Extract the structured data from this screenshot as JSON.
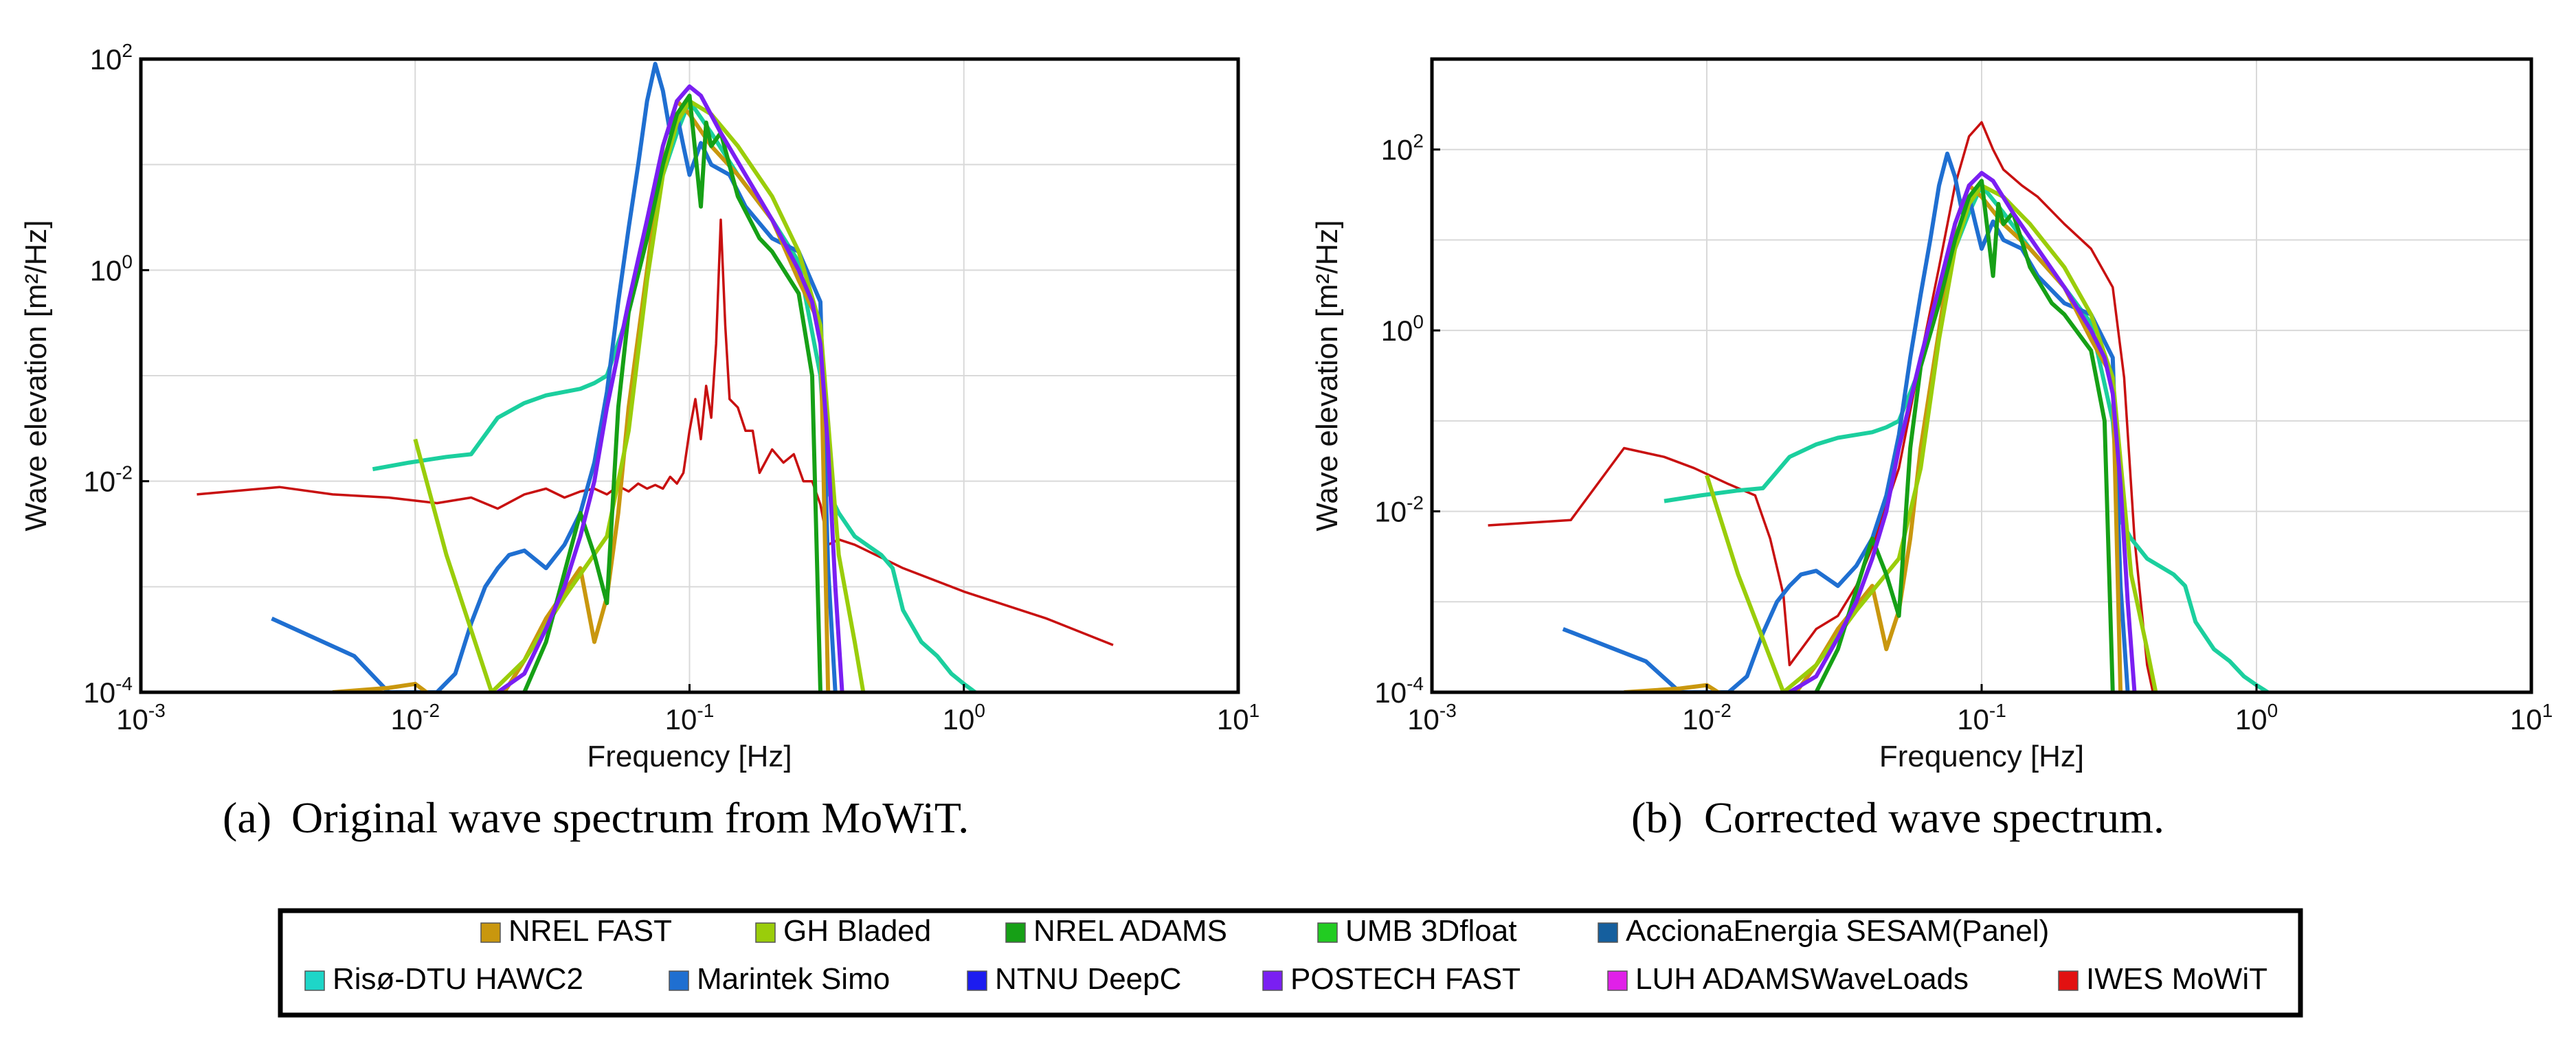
{
  "captions": {
    "a_label": "(a)",
    "a_text": "Original wave spectrum from MoWiT.",
    "b_label": "(b)",
    "b_text": "Corrected wave spectrum."
  },
  "legend": [
    {
      "label": "NREL FAST",
      "color": "#C9970E"
    },
    {
      "label": "GH Bladed",
      "color": "#9ACD0A"
    },
    {
      "label": "NREL ADAMS",
      "color": "#16A016"
    },
    {
      "label": "UMB 3Dfloat",
      "color": "#22CC22"
    },
    {
      "label": "AccionaEnergia SESAM(Panel)",
      "color": "#155F9E"
    },
    {
      "label": "Risø-DTU HAWC2",
      "color": "#1ED6C8"
    },
    {
      "label": "Marintek Simo",
      "color": "#1F6FD1"
    },
    {
      "label": "NTNU DeepC",
      "color": "#1C1CF0"
    },
    {
      "label": "POSTECH FAST",
      "color": "#7A1FF2"
    },
    {
      "label": "LUH ADAMSWaveLoads",
      "color": "#E020E8"
    },
    {
      "label": "IWES MoWiT",
      "color": "#E21111"
    }
  ],
  "chart_data": [
    {
      "type": "line",
      "id": "a",
      "title": "",
      "xlabel": "Frequency [Hz]",
      "ylabel": "Wave elevation [m²/Hz]",
      "xscale": "log",
      "yscale": "log",
      "xlim": [
        0.001,
        10
      ],
      "ylim": [
        0.0001,
        100
      ],
      "xticks": [
        {
          "base": "10",
          "exp": "-3"
        },
        {
          "base": "10",
          "exp": "-2"
        },
        {
          "base": "10",
          "exp": "-1"
        },
        {
          "base": "10",
          "exp": "0"
        },
        {
          "base": "10",
          "exp": "1"
        }
      ],
      "yticks": [
        {
          "base": "10",
          "exp": "-4"
        },
        {
          "base": "10",
          "exp": "-2"
        },
        {
          "base": "10",
          "exp": "0"
        },
        {
          "base": "10",
          "exp": "2"
        }
      ],
      "series": [
        {
          "name": "IWES MoWiT",
          "color": "#C81010",
          "x": [
            0.0016,
            0.0032,
            0.005,
            0.008,
            0.012,
            0.016,
            0.02,
            0.025,
            0.03,
            0.035,
            0.04,
            0.045,
            0.05,
            0.055,
            0.06,
            0.065,
            0.07,
            0.075,
            0.08,
            0.085,
            0.09,
            0.095,
            0.1,
            0.105,
            0.11,
            0.115,
            0.12,
            0.125,
            0.13,
            0.135,
            0.14,
            0.15,
            0.16,
            0.17,
            0.18,
            0.2,
            0.22,
            0.24,
            0.26,
            0.28,
            0.3,
            0.32,
            0.35,
            0.4,
            0.6,
            1.0,
            2.0,
            3.5
          ],
          "y": [
            0.0075,
            0.0088,
            0.0075,
            0.007,
            0.0062,
            0.007,
            0.0055,
            0.0075,
            0.0085,
            0.007,
            0.008,
            0.0085,
            0.0075,
            0.009,
            0.008,
            0.0095,
            0.0085,
            0.0092,
            0.0085,
            0.011,
            0.0095,
            0.012,
            0.03,
            0.06,
            0.025,
            0.08,
            0.04,
            0.2,
            3.0,
            0.3,
            0.06,
            0.05,
            0.03,
            0.03,
            0.012,
            0.02,
            0.015,
            0.018,
            0.01,
            0.01,
            0.006,
            0.0025,
            0.0028,
            0.0025,
            0.0015,
            0.0009,
            0.0005,
            0.00028
          ]
        },
        {
          "name": "Risø-DTU HAWC2",
          "color": "#1BCF9E",
          "x": [
            0.007,
            0.0095,
            0.013,
            0.016,
            0.02,
            0.025,
            0.03,
            0.04,
            0.045,
            0.05,
            0.06,
            0.07,
            0.08,
            0.09,
            0.1,
            0.12,
            0.15,
            0.2,
            0.25,
            0.3,
            0.32,
            0.35,
            0.4,
            0.5,
            0.55,
            0.6,
            0.7,
            0.8,
            0.9,
            1.0,
            1.1
          ],
          "y": [
            0.013,
            0.015,
            0.017,
            0.018,
            0.04,
            0.055,
            0.065,
            0.075,
            0.085,
            0.1,
            0.4,
            2.0,
            8,
            20,
            40,
            20,
            8,
            3,
            1.2,
            0.1,
            0.008,
            0.005,
            0.003,
            0.002,
            0.0015,
            0.0006,
            0.0003,
            0.00022,
            0.00015,
            0.00012,
            0.0001
          ]
        },
        {
          "name": "Marintek Simo",
          "color": "#1F6FD1",
          "x": [
            0.003,
            0.006,
            0.008,
            0.012,
            0.014,
            0.016,
            0.018,
            0.02,
            0.022,
            0.025,
            0.03,
            0.035,
            0.04,
            0.045,
            0.05,
            0.055,
            0.06,
            0.065,
            0.07,
            0.075,
            0.08,
            0.085,
            0.09,
            0.095,
            0.1,
            0.11,
            0.12,
            0.14,
            0.16,
            0.2,
            0.25,
            0.3,
            0.32,
            0.34
          ],
          "y": [
            0.0005,
            0.00022,
            0.0001,
            0.0001,
            0.00015,
            0.00045,
            0.001,
            0.0015,
            0.002,
            0.0022,
            0.0015,
            0.0025,
            0.005,
            0.015,
            0.07,
            0.5,
            2.5,
            10,
            40,
            90,
            50,
            20,
            30,
            15,
            8,
            16,
            10,
            8,
            4,
            2,
            1.5,
            0.5,
            0.0015,
            0.0001
          ]
        },
        {
          "name": "NREL FAST",
          "color": "#C9970E",
          "x": [
            0.005,
            0.008,
            0.01,
            0.011,
            0.02,
            0.025,
            0.03,
            0.04,
            0.045,
            0.05,
            0.055,
            0.06,
            0.07,
            0.08,
            0.09,
            0.1,
            0.12,
            0.15,
            0.2,
            0.25,
            0.3,
            0.32
          ],
          "y": [
            0.0001,
            0.00011,
            0.00012,
            0.0001,
            8e-05,
            0.0002,
            0.0005,
            0.0015,
            0.0003,
            0.0008,
            0.005,
            0.05,
            1.0,
            15,
            40,
            30,
            15,
            8,
            3,
            0.8,
            0.3,
            0.0001
          ]
        },
        {
          "name": "GH Bladed",
          "color": "#9ACD0A",
          "x": [
            0.01,
            0.013,
            0.019,
            0.025,
            0.035,
            0.05,
            0.06,
            0.07,
            0.08,
            0.09,
            0.1,
            0.12,
            0.15,
            0.2,
            0.25,
            0.3,
            0.35,
            0.4,
            0.43
          ],
          "y": [
            0.025,
            0.002,
            0.0001,
            0.0002,
            0.0008,
            0.003,
            0.03,
            0.8,
            8,
            25,
            40,
            30,
            15,
            5,
            1.5,
            0.3,
            0.002,
            0.0003,
            0.0001
          ]
        },
        {
          "name": "NREL ADAMS",
          "color": "#16A016",
          "x": [
            0.025,
            0.03,
            0.04,
            0.045,
            0.05,
            0.055,
            0.06,
            0.07,
            0.08,
            0.09,
            0.1,
            0.11,
            0.115,
            0.12,
            0.13,
            0.15,
            0.18,
            0.2,
            0.25,
            0.28,
            0.3
          ],
          "y": [
            0.0001,
            0.0003,
            0.005,
            0.002,
            0.0007,
            0.05,
            0.4,
            2,
            10,
            30,
            45,
            4,
            25,
            15,
            20,
            5,
            2,
            1.5,
            0.6,
            0.1,
            0.0001
          ]
        },
        {
          "name": "POSTECH FAST",
          "color": "#7A1FF2",
          "x": [
            0.02,
            0.025,
            0.03,
            0.035,
            0.04,
            0.045,
            0.05,
            0.06,
            0.07,
            0.08,
            0.09,
            0.1,
            0.11,
            0.13,
            0.16,
            0.2,
            0.25,
            0.28,
            0.3,
            0.32,
            0.34,
            0.36
          ],
          "y": [
            0.0001,
            0.00015,
            0.0004,
            0.001,
            0.003,
            0.01,
            0.05,
            0.5,
            3,
            15,
            40,
            55,
            45,
            20,
            8,
            3,
            1,
            0.5,
            0.2,
            0.02,
            0.001,
            0.0001
          ]
        }
      ]
    },
    {
      "type": "line",
      "id": "b",
      "title": "",
      "xlabel": "Frequency [Hz]",
      "ylabel": "Wave elevation [m²/Hz]",
      "xscale": "log",
      "yscale": "log",
      "xlim": [
        0.001,
        10
      ],
      "ylim": [
        0.0001,
        1000
      ],
      "xticks": [
        {
          "base": "10",
          "exp": "-3"
        },
        {
          "base": "10",
          "exp": "-2"
        },
        {
          "base": "10",
          "exp": "-1"
        },
        {
          "base": "10",
          "exp": "0"
        },
        {
          "base": "10",
          "exp": "1"
        }
      ],
      "yticks": [
        {
          "base": "10",
          "exp": "-4"
        },
        {
          "base": "10",
          "exp": "-2"
        },
        {
          "base": "10",
          "exp": "0"
        },
        {
          "base": "10",
          "exp": "2"
        }
      ],
      "series": [
        {
          "name": "IWES MoWiT",
          "color": "#C81010",
          "x": [
            0.0016,
            0.0032,
            0.005,
            0.007,
            0.009,
            0.012,
            0.015,
            0.017,
            0.019,
            0.02,
            0.025,
            0.03,
            0.035,
            0.04,
            0.05,
            0.06,
            0.07,
            0.08,
            0.09,
            0.1,
            0.11,
            0.12,
            0.14,
            0.16,
            0.2,
            0.25,
            0.3,
            0.33,
            0.36,
            0.4,
            0.42
          ],
          "y": [
            0.007,
            0.008,
            0.05,
            0.04,
            0.03,
            0.02,
            0.015,
            0.005,
            0.0012,
            0.0002,
            0.0005,
            0.0007,
            0.0015,
            0.004,
            0.03,
            0.5,
            5,
            40,
            140,
            200,
            100,
            60,
            40,
            30,
            15,
            8,
            3,
            0.3,
            0.005,
            0.0002,
            0.0001
          ]
        },
        {
          "name": "Risø-DTU HAWC2",
          "color": "#1BCF9E",
          "x": [
            0.007,
            0.0095,
            0.013,
            0.016,
            0.02,
            0.025,
            0.03,
            0.04,
            0.045,
            0.05,
            0.06,
            0.07,
            0.08,
            0.09,
            0.1,
            0.12,
            0.15,
            0.2,
            0.25,
            0.3,
            0.32,
            0.35,
            0.4,
            0.5,
            0.55,
            0.6,
            0.7,
            0.8,
            0.9,
            1.0,
            1.1
          ],
          "y": [
            0.013,
            0.015,
            0.017,
            0.018,
            0.04,
            0.055,
            0.065,
            0.075,
            0.085,
            0.1,
            0.4,
            2.0,
            8,
            20,
            40,
            20,
            8,
            3,
            1.2,
            0.1,
            0.008,
            0.005,
            0.003,
            0.002,
            0.0015,
            0.0006,
            0.0003,
            0.00022,
            0.00015,
            0.00012,
            0.0001
          ]
        },
        {
          "name": "Marintek Simo",
          "color": "#1F6FD1",
          "x": [
            0.003,
            0.006,
            0.008,
            0.012,
            0.014,
            0.016,
            0.018,
            0.02,
            0.022,
            0.025,
            0.03,
            0.035,
            0.04,
            0.045,
            0.05,
            0.055,
            0.06,
            0.065,
            0.07,
            0.075,
            0.08,
            0.085,
            0.09,
            0.095,
            0.1,
            0.11,
            0.12,
            0.14,
            0.16,
            0.2,
            0.25,
            0.3,
            0.32,
            0.34
          ],
          "y": [
            0.0005,
            0.00022,
            0.0001,
            0.0001,
            0.00015,
            0.00045,
            0.001,
            0.0015,
            0.002,
            0.0022,
            0.0015,
            0.0025,
            0.005,
            0.015,
            0.07,
            0.5,
            2.5,
            10,
            40,
            90,
            50,
            20,
            30,
            15,
            8,
            16,
            10,
            8,
            4,
            2,
            1.5,
            0.5,
            0.0015,
            0.0001
          ]
        },
        {
          "name": "NREL FAST",
          "color": "#C9970E",
          "x": [
            0.005,
            0.008,
            0.01,
            0.011,
            0.02,
            0.025,
            0.03,
            0.04,
            0.045,
            0.05,
            0.055,
            0.06,
            0.07,
            0.08,
            0.09,
            0.1,
            0.12,
            0.15,
            0.2,
            0.25,
            0.3,
            0.32
          ],
          "y": [
            0.0001,
            0.00011,
            0.00012,
            0.0001,
            8e-05,
            0.0002,
            0.0005,
            0.0015,
            0.0003,
            0.0008,
            0.005,
            0.05,
            1.0,
            15,
            40,
            30,
            15,
            8,
            3,
            0.8,
            0.3,
            0.0001
          ]
        },
        {
          "name": "GH Bladed",
          "color": "#9ACD0A",
          "x": [
            0.01,
            0.013,
            0.019,
            0.025,
            0.035,
            0.05,
            0.06,
            0.07,
            0.08,
            0.09,
            0.1,
            0.12,
            0.15,
            0.2,
            0.25,
            0.3,
            0.35,
            0.4,
            0.43
          ],
          "y": [
            0.025,
            0.002,
            0.0001,
            0.0002,
            0.0008,
            0.003,
            0.03,
            0.8,
            8,
            25,
            40,
            30,
            15,
            5,
            1.5,
            0.3,
            0.002,
            0.0003,
            0.0001
          ]
        },
        {
          "name": "NREL ADAMS",
          "color": "#16A016",
          "x": [
            0.025,
            0.03,
            0.04,
            0.045,
            0.05,
            0.055,
            0.06,
            0.07,
            0.08,
            0.09,
            0.1,
            0.11,
            0.115,
            0.12,
            0.13,
            0.15,
            0.18,
            0.2,
            0.25,
            0.28,
            0.3
          ],
          "y": [
            0.0001,
            0.0003,
            0.005,
            0.002,
            0.0007,
            0.05,
            0.4,
            2,
            10,
            30,
            45,
            4,
            25,
            15,
            20,
            5,
            2,
            1.5,
            0.6,
            0.1,
            0.0001
          ]
        },
        {
          "name": "POSTECH FAST",
          "color": "#7A1FF2",
          "x": [
            0.02,
            0.025,
            0.03,
            0.035,
            0.04,
            0.045,
            0.05,
            0.06,
            0.07,
            0.08,
            0.09,
            0.1,
            0.11,
            0.13,
            0.16,
            0.2,
            0.25,
            0.28,
            0.3,
            0.32,
            0.34,
            0.36
          ],
          "y": [
            0.0001,
            0.00015,
            0.0004,
            0.001,
            0.003,
            0.01,
            0.05,
            0.5,
            3,
            15,
            40,
            55,
            45,
            20,
            8,
            3,
            1,
            0.5,
            0.2,
            0.02,
            0.001,
            0.0001
          ]
        }
      ]
    }
  ]
}
